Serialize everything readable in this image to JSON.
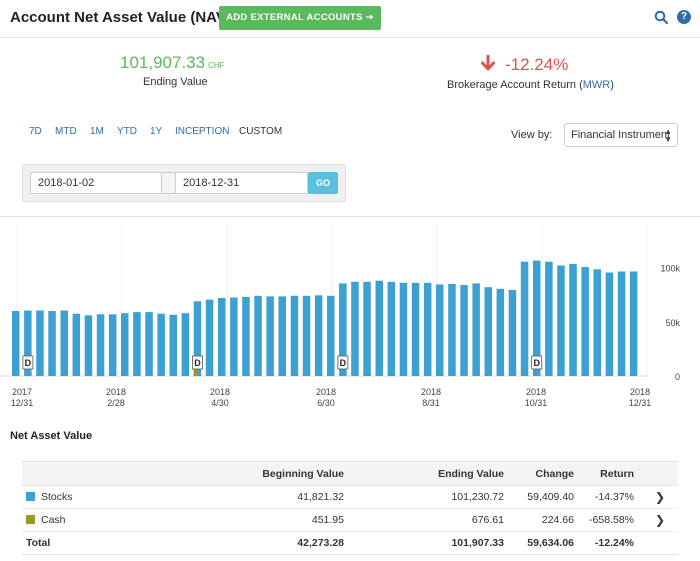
{
  "header": {
    "title": "Account Net Asset Value (NAV)",
    "add_button": "ADD EXTERNAL ACCOUNTS ➔",
    "help_label": "?"
  },
  "summary": {
    "ending_value": "101,907.33",
    "ending_currency": "CHF",
    "ending_label": "Ending Value",
    "return_value": "-12.24%",
    "return_label": "Brokerage Account Return (",
    "return_method": "MWR",
    "return_label_end": ")"
  },
  "ranges": [
    "7D",
    "MTD",
    "1M",
    "YTD",
    "1Y",
    "INCEPTION",
    "CUSTOM"
  ],
  "active_range": "CUSTOM",
  "view_by": {
    "label": "View by:",
    "selected": "Financial Instrument"
  },
  "dates": {
    "start": "2018-01-02",
    "end": "2018-12-31",
    "go": "GO"
  },
  "colors": {
    "bar": "#3ca0d0",
    "cash": "#9a9a1e",
    "positive": "#5cb85c",
    "negative": "#d9534f",
    "link": "#2f6da8"
  },
  "chart_data": {
    "type": "bar",
    "y_ticks": [
      "100k",
      "50k",
      "0"
    ],
    "ylim": [
      0,
      120000
    ],
    "x_ticks": [
      {
        "year": "2017",
        "md": "12/31"
      },
      {
        "year": "2018",
        "md": "2/28"
      },
      {
        "year": "2018",
        "md": "4/30"
      },
      {
        "year": "2018",
        "md": "6/30"
      },
      {
        "year": "2018",
        "md": "8/31"
      },
      {
        "year": "2018",
        "md": "10/31"
      },
      {
        "year": "2018",
        "md": "12/31"
      }
    ],
    "values": [
      60000,
      60500,
      60500,
      60000,
      60500,
      57500,
      56000,
      57000,
      57000,
      58000,
      59000,
      59000,
      57500,
      56500,
      58000,
      69000,
      70500,
      72000,
      72500,
      73000,
      74000,
      73500,
      73500,
      74000,
      74000,
      74500,
      74000,
      85500,
      87000,
      87000,
      88000,
      87000,
      86000,
      86000,
      86000,
      84500,
      85000,
      84000,
      85500,
      82000,
      80500,
      79500,
      105500,
      106500,
      105500,
      102000,
      103500,
      100500,
      98500,
      95500,
      96500,
      96500
    ],
    "cash_bar": {
      "index": 15,
      "value": 9000
    },
    "dividend_marker": "D",
    "dividend_indices": [
      1,
      15,
      27,
      43
    ]
  },
  "nav": {
    "title": "Net Asset Value",
    "columns": [
      "",
      "Beginning Value",
      "Ending Value",
      "Change",
      "Return",
      ""
    ],
    "rows": [
      {
        "name": "Stocks",
        "color": "#3ca0d0",
        "beginning": "41,821.32",
        "ending": "101,230.72",
        "change": "59,409.40",
        "return": "-14.37%"
      },
      {
        "name": "Cash",
        "color": "#9a9a1e",
        "beginning": "451.95",
        "ending": "676.61",
        "change": "224.66",
        "return": "-658.58%"
      }
    ],
    "total": {
      "name": "Total",
      "beginning": "42,273.28",
      "ending": "101,907.33",
      "change": "59,634.06",
      "return": "-12.24%"
    }
  }
}
